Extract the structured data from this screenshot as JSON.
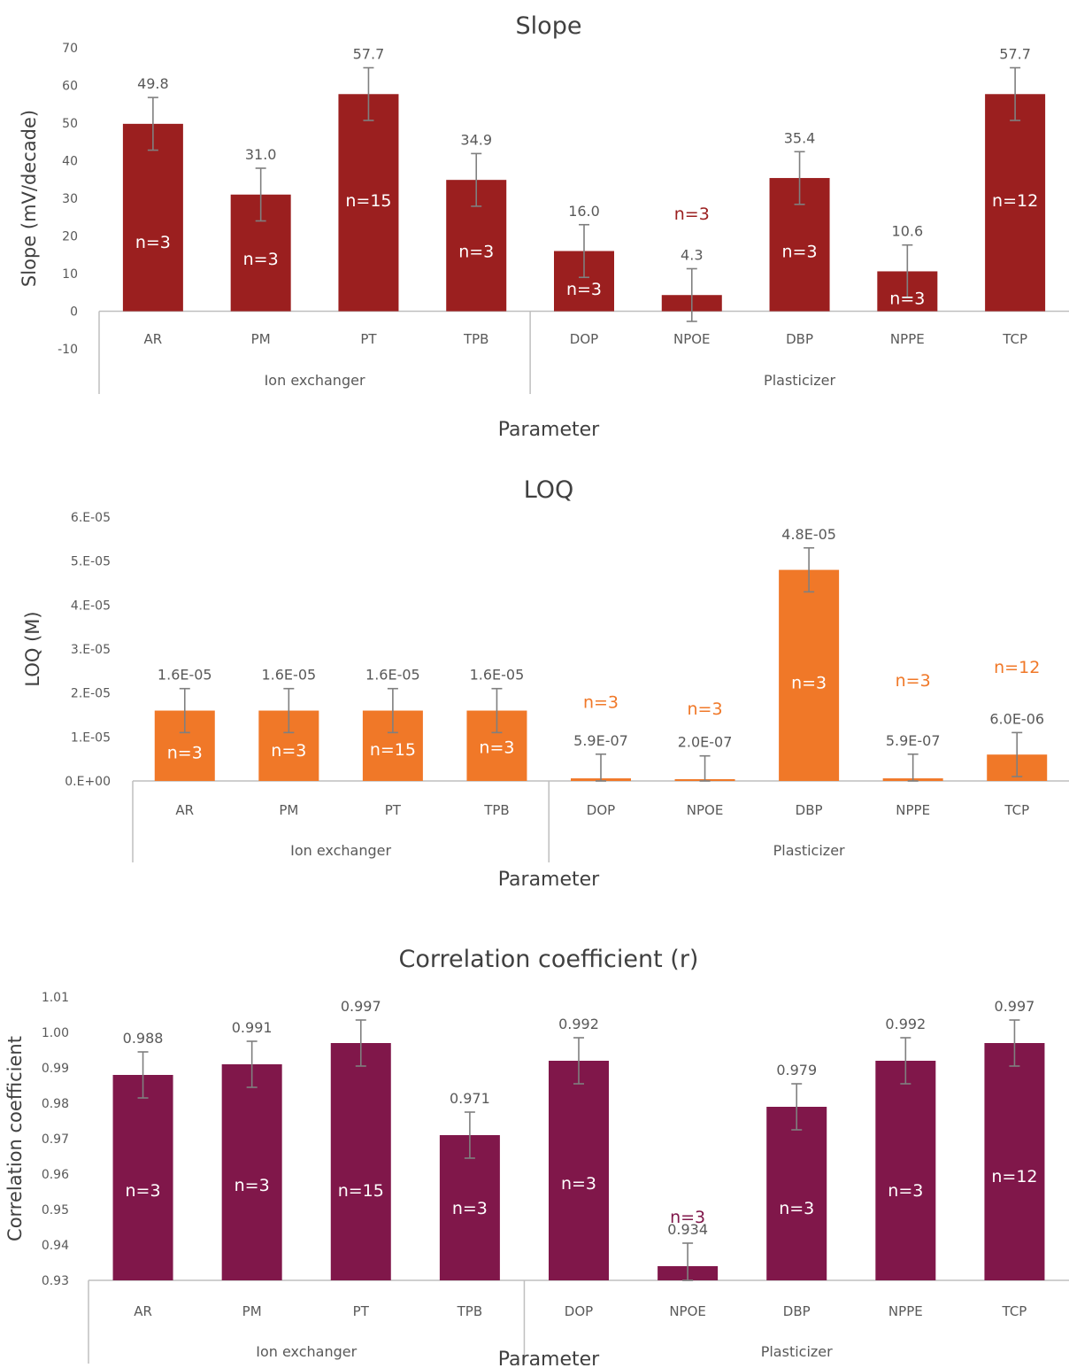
{
  "chart_data": [
    {
      "type": "bar",
      "title": "Slope",
      "xlabel": "Parameter",
      "ylabel": "Slope (mV/decade)",
      "ylim": [
        -10,
        70
      ],
      "yticks": [
        "-10",
        "0",
        "10",
        "20",
        "30",
        "40",
        "50",
        "60",
        "70"
      ],
      "yticks_values": [
        -10,
        0,
        10,
        20,
        30,
        40,
        50,
        60,
        70
      ],
      "groups": [
        {
          "name": "Ion exchanger",
          "count": 4
        },
        {
          "name": "Plasticizer",
          "count": 5
        }
      ],
      "categories": [
        "AR",
        "PM",
        "PT",
        "TPB",
        "DOP",
        "NPOE",
        "DBP",
        "NPPE",
        "TCP"
      ],
      "values": [
        49.8,
        31.0,
        57.7,
        34.9,
        16.0,
        4.3,
        35.4,
        10.6,
        57.7
      ],
      "errors": [
        7,
        7,
        7,
        7,
        7,
        7,
        7,
        7,
        7
      ],
      "value_labels": [
        "49.8",
        "31.0",
        "57.7",
        "34.9",
        "16.0",
        "4.3",
        "35.4",
        "10.6",
        "57.7"
      ],
      "n_labels": [
        "n=3",
        "n=3",
        "n=15",
        "n=3",
        "n=3",
        "n=3",
        "n=3",
        "n=3",
        "n=12"
      ],
      "n_label_y": [
        18.5,
        14,
        29.5,
        16,
        6,
        26,
        16,
        3.5,
        29.5
      ],
      "n_label_inside": [
        true,
        true,
        true,
        true,
        true,
        false,
        true,
        true,
        true
      ],
      "color": "#9b1f1f"
    },
    {
      "type": "bar",
      "title": "LOQ",
      "xlabel": "Parameter",
      "ylabel": "LOQ (M)",
      "ylim": [
        0,
        6e-05
      ],
      "yticks": [
        "0.E+00",
        "1.E-05",
        "2.E-05",
        "3.E-05",
        "4.E-05",
        "5.E-05",
        "6.E-05"
      ],
      "yticks_values": [
        0,
        1e-05,
        2e-05,
        3e-05,
        4e-05,
        5e-05,
        6e-05
      ],
      "groups": [
        {
          "name": "Ion exchanger",
          "count": 4
        },
        {
          "name": "Plasticizer",
          "count": 5
        }
      ],
      "categories": [
        "AR",
        "PM",
        "PT",
        "TPB",
        "DOP",
        "NPOE",
        "DBP",
        "NPPE",
        "TCP"
      ],
      "values": [
        1.6e-05,
        1.6e-05,
        1.6e-05,
        1.6e-05,
        5.9e-07,
        2e-07,
        4.8e-05,
        5.9e-07,
        6e-06
      ],
      "errors": [
        5e-06,
        5e-06,
        5e-06,
        5e-06,
        5.5e-06,
        5.5e-06,
        5e-06,
        5.5e-06,
        5e-06
      ],
      "value_labels": [
        "1.6E-05",
        "1.6E-05",
        "1.6E-05",
        "1.6E-05",
        "5.9E-07",
        "2.0E-07",
        "4.8E-05",
        "5.9E-07",
        "6.0E-06"
      ],
      "n_labels": [
        "n=3",
        "n=3",
        "n=15",
        "n=3",
        "n=3",
        "n=3",
        "n=3",
        "n=3",
        "n=12"
      ],
      "n_label_y": [
        6.5e-06,
        7e-06,
        7.2e-06,
        7.8e-06,
        1.8e-05,
        1.65e-05,
        2.25e-05,
        2.3e-05,
        2.6e-05
      ],
      "n_label_inside": [
        true,
        true,
        true,
        true,
        false,
        false,
        true,
        false,
        false
      ],
      "color": "#f07828",
      "n_outside_color": "#f07828"
    },
    {
      "type": "bar",
      "title": "Correlation coefficient (r)",
      "xlabel": "Parameter",
      "ylabel": "Correlation coefficient",
      "ylim": [
        0.93,
        1.01
      ],
      "yticks": [
        "0.93",
        "0.94",
        "0.95",
        "0.96",
        "0.97",
        "0.98",
        "0.99",
        "1.00",
        "1.01"
      ],
      "yticks_values": [
        0.93,
        0.94,
        0.95,
        0.96,
        0.97,
        0.98,
        0.99,
        1.0,
        1.01
      ],
      "groups": [
        {
          "name": "Ion exchanger",
          "count": 4
        },
        {
          "name": "Plasticizer",
          "count": 5
        }
      ],
      "categories": [
        "AR",
        "PM",
        "PT",
        "TPB",
        "DOP",
        "NPOE",
        "DBP",
        "NPPE",
        "TCP"
      ],
      "values": [
        0.988,
        0.991,
        0.997,
        0.971,
        0.992,
        0.934,
        0.979,
        0.992,
        0.997
      ],
      "errors": [
        0.0065,
        0.0065,
        0.0065,
        0.0065,
        0.0065,
        0.0065,
        0.0065,
        0.0065,
        0.0065
      ],
      "value_labels": [
        "0.988",
        "0.991",
        "0.997",
        "0.971",
        "0.992",
        "0.934",
        "0.979",
        "0.992",
        "0.997"
      ],
      "n_labels": [
        "n=3",
        "n=3",
        "n=15",
        "n=3",
        "n=3",
        "n=3",
        "n=3",
        "n=3",
        "n=12"
      ],
      "n_label_y": [
        0.9555,
        0.957,
        0.9555,
        0.9505,
        0.9575,
        0.948,
        0.9505,
        0.9555,
        0.9595
      ],
      "n_label_inside": [
        true,
        true,
        true,
        true,
        true,
        false,
        true,
        true,
        true
      ],
      "color": "#80174a"
    }
  ]
}
